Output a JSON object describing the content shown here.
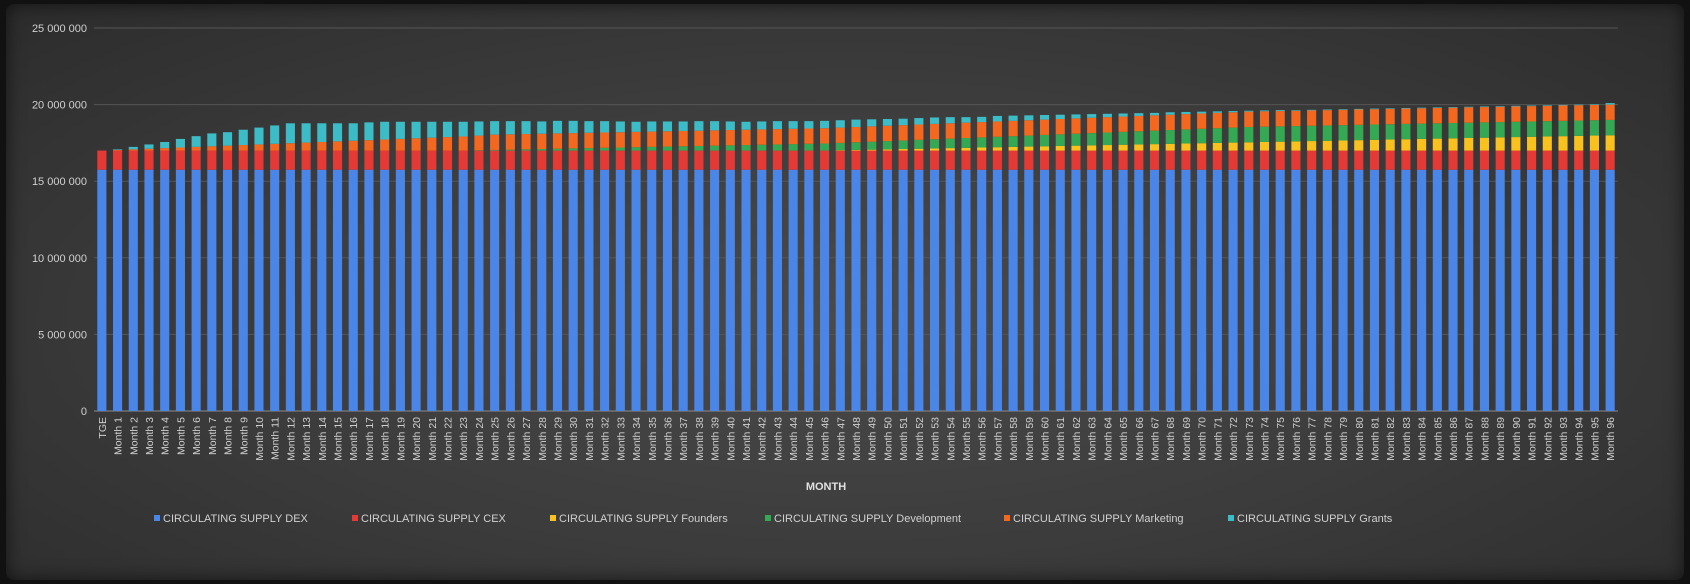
{
  "chart_data": {
    "type": "bar",
    "stacked": true,
    "title": "",
    "xlabel": "MONTH",
    "ylabel": "",
    "ylim": [
      0,
      25000000
    ],
    "yticks": [
      0,
      5000000,
      10000000,
      15000000,
      20000000,
      25000000
    ],
    "ytick_labels": [
      "0",
      "5 000 000",
      "10 000 000",
      "15 000 000",
      "20 000 000",
      "25 000 000"
    ],
    "grid": true,
    "legend_position": "bottom",
    "categories": [
      "TGE",
      "Month 1",
      "Month 2",
      "Month 3",
      "Month 4",
      "Month 5",
      "Month 6",
      "Month 7",
      "Month 8",
      "Month 9",
      "Month 10",
      "Month 11",
      "Month 12",
      "Month 13",
      "Month 14",
      "Month 15",
      "Month 16",
      "Month 17",
      "Month 18",
      "Month 19",
      "Month 20",
      "Month 21",
      "Month 22",
      "Month 23",
      "Month 24",
      "Month 25",
      "Month 26",
      "Month 27",
      "Month 28",
      "Month 29",
      "Month 30",
      "Month 31",
      "Month 32",
      "Month 33",
      "Month 34",
      "Month 35",
      "Month 36",
      "Month 37",
      "Month 38",
      "Month 39",
      "Month 40",
      "Month 41",
      "Month 42",
      "Month 43",
      "Month 44",
      "Month 45",
      "Month 46",
      "Month 47",
      "Month 48",
      "Month 49",
      "Month 50",
      "Month 51",
      "Month 52",
      "Month 53",
      "Month 54",
      "Month 55",
      "Month 56",
      "Month 57",
      "Month 58",
      "Month 59",
      "Month 60",
      "Month 61",
      "Month 62",
      "Month 63",
      "Month 64",
      "Month 65",
      "Month 66",
      "Month 67",
      "Month 68",
      "Month 69",
      "Month 70",
      "Month 71",
      "Month 72",
      "Month 73",
      "Month 74",
      "Month 75",
      "Month 76",
      "Month 77",
      "Month 78",
      "Month 79",
      "Month 80",
      "Month 81",
      "Month 82",
      "Month 83",
      "Month 84",
      "Month 85",
      "Month 86",
      "Month 87",
      "Month 88",
      "Month 89",
      "Month 90",
      "Month 91",
      "Month 92",
      "Month 93",
      "Month 94",
      "Month 95",
      "Month 96"
    ],
    "series": [
      {
        "name": "CIRCULATING SUPPLY DEX",
        "color": "#4a86e8",
        "values": [
          15750000,
          15750000,
          15750000,
          15750000,
          15750000,
          15750000,
          15750000,
          15750000,
          15750000,
          15750000,
          15750000,
          15750000,
          15750000,
          15750000,
          15750000,
          15750000,
          15750000,
          15750000,
          15750000,
          15750000,
          15750000,
          15750000,
          15750000,
          15750000,
          15750000,
          15750000,
          15750000,
          15750000,
          15750000,
          15750000,
          15750000,
          15750000,
          15750000,
          15750000,
          15750000,
          15750000,
          15750000,
          15750000,
          15750000,
          15750000,
          15750000,
          15750000,
          15750000,
          15750000,
          15750000,
          15750000,
          15750000,
          15750000,
          15750000,
          15750000,
          15750000,
          15750000,
          15750000,
          15750000,
          15750000,
          15750000,
          15750000,
          15750000,
          15750000,
          15750000,
          15750000,
          15750000,
          15750000,
          15750000,
          15750000,
          15750000,
          15750000,
          15750000,
          15750000,
          15750000,
          15750000,
          15750000,
          15750000,
          15750000,
          15750000,
          15750000,
          15750000,
          15750000,
          15750000,
          15750000,
          15750000,
          15750000,
          15750000,
          15750000,
          15750000,
          15750000,
          15750000,
          15750000,
          15750000,
          15750000,
          15750000,
          15750000,
          15750000,
          15750000,
          15750000,
          15750000,
          15750000
        ]
      },
      {
        "name": "CIRCULATING SUPPLY CEX",
        "color": "#e53935",
        "values": [
          1250000,
          1250000,
          1250000,
          1250000,
          1250000,
          1250000,
          1250000,
          1250000,
          1250000,
          1250000,
          1250000,
          1250000,
          1250000,
          1250000,
          1250000,
          1250000,
          1250000,
          1250000,
          1250000,
          1250000,
          1250000,
          1250000,
          1250000,
          1250000,
          1250000,
          1250000,
          1250000,
          1250000,
          1250000,
          1250000,
          1250000,
          1250000,
          1250000,
          1250000,
          1250000,
          1250000,
          1250000,
          1250000,
          1250000,
          1250000,
          1250000,
          1250000,
          1250000,
          1250000,
          1250000,
          1250000,
          1250000,
          1250000,
          1250000,
          1250000,
          1250000,
          1250000,
          1250000,
          1250000,
          1250000,
          1250000,
          1250000,
          1250000,
          1250000,
          1250000,
          1250000,
          1250000,
          1250000,
          1250000,
          1250000,
          1250000,
          1250000,
          1250000,
          1250000,
          1250000,
          1250000,
          1250000,
          1250000,
          1250000,
          1250000,
          1250000,
          1250000,
          1250000,
          1250000,
          1250000,
          1250000,
          1250000,
          1250000,
          1250000,
          1250000,
          1250000,
          1250000,
          1250000,
          1250000,
          1250000,
          1250000,
          1250000,
          1250000,
          1250000,
          1250000,
          1250000,
          1250000
        ]
      },
      {
        "name": "CIRCULATING SUPPLY Founders",
        "color": "#f9c11e",
        "values": [
          0,
          0,
          0,
          0,
          0,
          0,
          0,
          0,
          0,
          0,
          0,
          0,
          0,
          0,
          0,
          0,
          0,
          0,
          0,
          0,
          0,
          0,
          0,
          0,
          0,
          0,
          0,
          0,
          0,
          0,
          0,
          0,
          0,
          0,
          0,
          0,
          0,
          0,
          0,
          0,
          0,
          0,
          0,
          0,
          0,
          0,
          0,
          20000,
          40000,
          60000,
          80000,
          100000,
          120000,
          140000,
          160000,
          180000,
          200000,
          220000,
          240000,
          260000,
          280000,
          300000,
          320000,
          340000,
          360000,
          380000,
          400000,
          420000,
          440000,
          460000,
          480000,
          500000,
          520000,
          540000,
          560000,
          580000,
          600000,
          620000,
          640000,
          660000,
          680000,
          700000,
          720000,
          740000,
          760000,
          780000,
          800000,
          820000,
          840000,
          860000,
          880000,
          900000,
          920000,
          940000,
          960000,
          980000,
          1000000
        ]
      },
      {
        "name": "CIRCULATING SUPPLY Development",
        "color": "#34a853",
        "values": [
          0,
          0,
          0,
          0,
          0,
          0,
          0,
          0,
          0,
          0,
          0,
          0,
          0,
          0,
          0,
          0,
          0,
          0,
          0,
          0,
          0,
          0,
          0,
          0,
          20000,
          40000,
          60000,
          80000,
          100000,
          120000,
          140000,
          160000,
          180000,
          200000,
          220000,
          240000,
          260000,
          280000,
          300000,
          320000,
          340000,
          360000,
          380000,
          400000,
          420000,
          440000,
          460000,
          480000,
          500000,
          520000,
          540000,
          560000,
          580000,
          600000,
          620000,
          640000,
          660000,
          680000,
          700000,
          720000,
          740000,
          760000,
          780000,
          800000,
          820000,
          840000,
          860000,
          880000,
          900000,
          920000,
          940000,
          960000,
          980000,
          1000000,
          1000000,
          1000000,
          1000000,
          1000000,
          1000000,
          1000000,
          1000000,
          1000000,
          1000000,
          1000000,
          1000000,
          1000000,
          1000000,
          1000000,
          1000000,
          1000000,
          1000000,
          1000000,
          1000000,
          1000000,
          1000000,
          1000000,
          1000000
        ]
      },
      {
        "name": "CIRCULATING SUPPLY Marketing",
        "color": "#f4671f",
        "values": [
          0,
          40000,
          80000,
          120000,
          160000,
          200000,
          240000,
          280000,
          320000,
          360000,
          400000,
          440000,
          480000,
          520000,
          560000,
          600000,
          640000,
          680000,
          720000,
          760000,
          800000,
          840000,
          880000,
          920000,
          960000,
          1000000,
          1000000,
          1000000,
          1000000,
          1000000,
          1000000,
          1000000,
          1000000,
          1000000,
          1000000,
          1000000,
          1000000,
          1000000,
          1000000,
          1000000,
          1000000,
          1000000,
          1000000,
          1000000,
          1000000,
          1000000,
          1000000,
          1000000,
          1000000,
          1000000,
          1000000,
          1000000,
          1000000,
          1000000,
          1000000,
          1000000,
          1000000,
          1000000,
          1000000,
          1000000,
          1000000,
          1000000,
          1000000,
          1000000,
          1000000,
          1000000,
          1000000,
          1000000,
          1000000,
          1000000,
          1000000,
          1000000,
          1000000,
          1000000,
          1000000,
          1000000,
          1000000,
          1000000,
          1000000,
          1000000,
          1000000,
          1000000,
          1000000,
          1000000,
          1000000,
          1000000,
          1000000,
          1000000,
          1000000,
          1000000,
          1000000,
          1000000,
          1000000,
          1000000,
          1000000,
          1000000,
          1000000
        ]
      },
      {
        "name": "CIRCULATING SUPPLY Grants",
        "color": "#3cbcc6",
        "values": [
          0,
          40000,
          160000,
          280000,
          400000,
          560000,
          700000,
          840000,
          880000,
          1000000,
          1100000,
          1200000,
          1300000,
          1260000,
          1220000,
          1180000,
          1140000,
          1160000,
          1160000,
          1120000,
          1080000,
          1040000,
          1000000,
          960000,
          920000,
          880000,
          860000,
          840000,
          800000,
          820000,
          800000,
          760000,
          740000,
          700000,
          660000,
          660000,
          640000,
          620000,
          620000,
          600000,
          560000,
          520000,
          520000,
          520000,
          500000,
          480000,
          480000,
          480000,
          480000,
          460000,
          440000,
          420000,
          420000,
          420000,
          400000,
          360000,
          340000,
          360000,
          340000,
          320000,
          300000,
          280000,
          260000,
          240000,
          220000,
          200000,
          180000,
          160000,
          160000,
          140000,
          120000,
          100000,
          80000,
          60000,
          60000,
          60000,
          40000,
          40000,
          40000,
          40000,
          40000,
          40000,
          40000,
          40000,
          40000,
          40000,
          40000,
          40000,
          40000,
          40000,
          40000,
          40000,
          40000,
          40000,
          40000,
          40000,
          100000
        ]
      }
    ]
  }
}
